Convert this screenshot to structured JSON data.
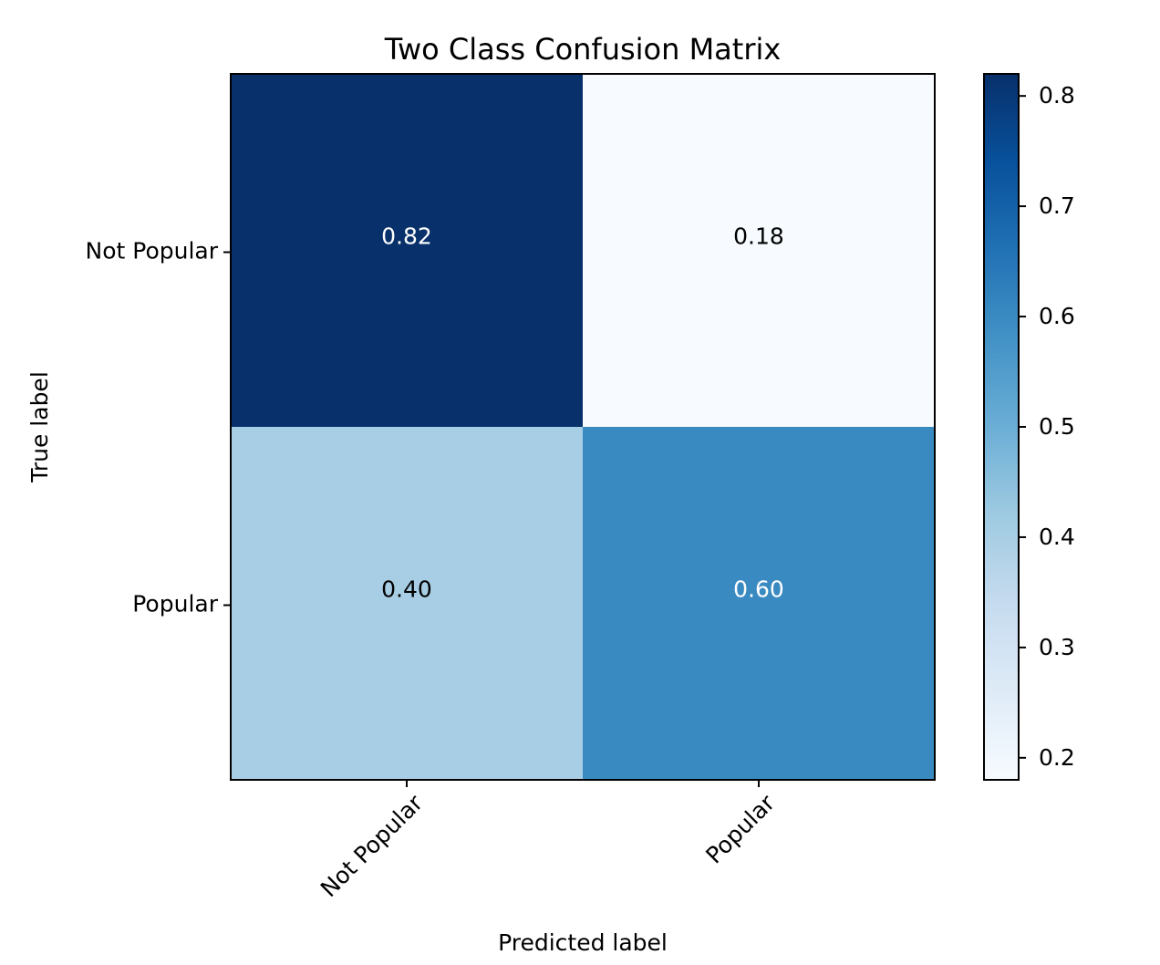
{
  "chart_data": {
    "type": "heatmap",
    "title": "Two Class Confusion Matrix",
    "xlabel": "Predicted label",
    "ylabel": "True label",
    "x_categories": [
      "Not Popular",
      "Popular"
    ],
    "y_categories": [
      "Not Popular",
      "Popular"
    ],
    "values": [
      [
        0.82,
        0.18
      ],
      [
        0.4,
        0.6
      ]
    ],
    "cell_labels": [
      [
        "0.82",
        "0.18"
      ],
      [
        "0.40",
        "0.60"
      ]
    ],
    "colormap": "Blues",
    "vmin": 0.18,
    "vmax": 0.82,
    "colorbar_ticks": [
      "0.2",
      "0.3",
      "0.4",
      "0.5",
      "0.6",
      "0.7",
      "0.8"
    ],
    "colors": {
      "lightest": "#f7fbff",
      "darkest": "#08306b",
      "text_on_dark": "#ffffff",
      "text_on_light": "#000000"
    }
  }
}
